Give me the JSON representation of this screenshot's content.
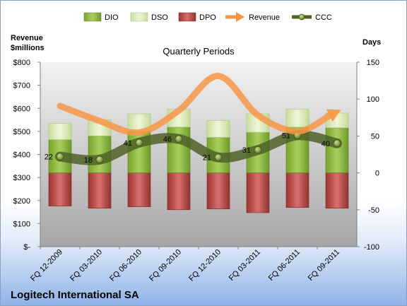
{
  "company": "Logitech International SA",
  "chart_data": {
    "type": "bar",
    "title": "Quarterly Periods",
    "left_axis_label_line1": "Revenue",
    "left_axis_label_line2": "$millions",
    "right_axis_label": "Days",
    "categories": [
      "FQ 12-2009",
      "FQ 03-2010",
      "FQ 06-2010",
      "FQ 09-2010",
      "FQ 12-2010",
      "FQ 03-2011",
      "FQ 06-2011",
      "FQ 09-2011"
    ],
    "left_ylim": [
      0,
      800
    ],
    "left_ticks": [
      "$-",
      "$100",
      "$200",
      "$300",
      "$400",
      "$500",
      "$600",
      "$700",
      "$800"
    ],
    "right_ylim": [
      -100,
      150
    ],
    "right_ticks": [
      "-100",
      "-50",
      "0",
      "50",
      "100",
      "150"
    ],
    "legend_position": "top",
    "series": [
      {
        "name": "DIO",
        "kind": "stacked-bar-days",
        "values": [
          45,
          50,
          57,
          62,
          48,
          55,
          62,
          61
        ],
        "color": "#8cb83c"
      },
      {
        "name": "DSO",
        "kind": "stacked-bar-days",
        "values": [
          22,
          22,
          23,
          24,
          23,
          25,
          24,
          20
        ],
        "color": "#d7e8b2"
      },
      {
        "name": "DPO",
        "kind": "bar-days-below-zero",
        "values": [
          -45,
          -48,
          -46,
          -50,
          -49,
          -54,
          -47,
          -48
        ],
        "color": "#c0504d"
      },
      {
        "name": "Revenue",
        "kind": "line-left-axis",
        "values": [
          610,
          545,
          495,
          590,
          740,
          570,
          500,
          585
        ],
        "color": "#f79646"
      },
      {
        "name": "CCC",
        "kind": "line-right-axis",
        "values": [
          22,
          18,
          41,
          46,
          21,
          31,
          51,
          40
        ],
        "color": "#4f6228"
      }
    ],
    "ccc_labels": [
      "22",
      "18",
      "41",
      "46",
      "21",
      "31",
      "51",
      "40"
    ],
    "grid": false
  }
}
